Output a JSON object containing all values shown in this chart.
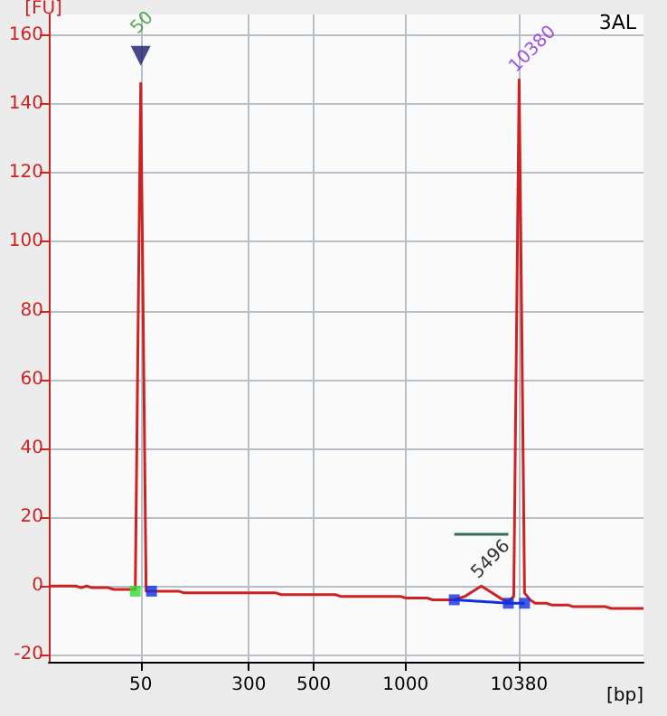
{
  "chart_data": {
    "type": "line",
    "title": "3AL",
    "xlabel": "[bp]",
    "ylabel": "[FU]",
    "categories": [
      null,
      null,
      null,
      null,
      null,
      null,
      null,
      null,
      null,
      null,
      null,
      null,
      null,
      null,
      null,
      null,
      null,
      "50",
      null,
      null,
      null,
      null,
      null,
      null,
      null,
      null,
      null,
      null,
      null,
      null,
      null,
      null,
      null,
      null,
      null,
      null,
      null,
      "300",
      null,
      null,
      null,
      null,
      null,
      null,
      null,
      null,
      null,
      null,
      null,
      "500",
      null,
      null,
      null,
      null,
      null,
      null,
      null,
      null,
      null,
      null,
      null,
      null,
      null,
      null,
      null,
      null,
      "1000",
      null,
      null,
      null,
      null,
      null,
      null,
      null,
      null,
      null,
      null,
      null,
      null,
      null,
      null,
      null,
      null,
      null,
      null,
      null,
      null,
      "10380",
      null,
      null,
      null,
      null,
      null,
      null,
      null,
      null,
      null,
      null,
      null,
      null,
      null,
      null,
      null,
      null,
      null,
      null,
      null,
      null,
      null,
      null,
      null
    ],
    "series": [
      {
        "color": "#cc2222",
        "marker": "none",
        "values": [
          0,
          0,
          0,
          0,
          0,
          0,
          -0.5,
          0,
          -0.5,
          -0.5,
          -0.5,
          -0.5,
          -1,
          -1,
          -1,
          -1,
          -1,
          146,
          -1.5,
          -1.5,
          -1.5,
          -1.5,
          -1.5,
          -1.5,
          -1.5,
          -2,
          -2,
          -2,
          -2,
          -2,
          -2,
          -2,
          -2,
          -2,
          -2,
          -2,
          -2,
          -2,
          -2,
          -2,
          -2,
          -2,
          -2,
          -2.5,
          -2.5,
          -2.5,
          -2.5,
          -2.5,
          -2.5,
          -2.5,
          -2.5,
          -2.5,
          -2.5,
          -2.5,
          -3,
          -3,
          -3,
          -3,
          -3,
          -3,
          -3,
          -3,
          -3,
          -3,
          -3,
          -3,
          -3.5,
          -3.5,
          -3.5,
          -3.5,
          -3.5,
          -4,
          -4,
          -4,
          -4,
          -4,
          -3.5,
          -3,
          -2,
          -1,
          0,
          -1,
          -2,
          -3,
          -4,
          -4.5,
          -3,
          147,
          -2,
          -4,
          -5,
          -5,
          -5,
          -5.5,
          -5.5,
          -5.5,
          -5.5,
          -6,
          -6,
          -6,
          -6,
          -6,
          -6,
          -6,
          -6.5,
          -6.5,
          -6.5,
          -6.5,
          -6.5,
          -6.5,
          -6.5
        ]
      },
      {
        "type": "line",
        "color": "#1030e0",
        "marker": "none",
        "values": [
          null,
          null,
          null,
          null,
          null,
          null,
          null,
          null,
          null,
          null,
          null,
          null,
          null,
          null,
          null,
          null,
          null,
          null,
          null,
          null,
          null,
          null,
          null,
          null,
          null,
          null,
          null,
          null,
          null,
          null,
          null,
          null,
          null,
          null,
          null,
          null,
          null,
          null,
          null,
          null,
          null,
          null,
          null,
          null,
          null,
          null,
          null,
          null,
          null,
          null,
          null,
          null,
          null,
          null,
          null,
          null,
          null,
          null,
          null,
          null,
          null,
          null,
          null,
          null,
          null,
          null,
          null,
          null,
          null,
          null,
          null,
          null,
          null,
          null,
          null,
          -4,
          -4.1,
          -4.2,
          -4.3,
          -4.4,
          -4.5,
          -4.6,
          -4.7,
          -4.8,
          -4.9,
          -5,
          -5,
          -5,
          -5,
          null,
          null,
          null,
          null,
          null,
          null,
          null,
          null,
          null,
          null,
          null,
          null,
          null,
          null,
          null,
          null,
          null,
          null,
          null,
          null,
          null,
          null
        ]
      },
      {
        "type": "line",
        "color": "#2e6e5a",
        "marker": "none",
        "values": [
          null,
          null,
          null,
          null,
          null,
          null,
          null,
          null,
          null,
          null,
          null,
          null,
          null,
          null,
          null,
          null,
          null,
          null,
          null,
          null,
          null,
          null,
          null,
          null,
          null,
          null,
          null,
          null,
          null,
          null,
          null,
          null,
          null,
          null,
          null,
          null,
          null,
          null,
          null,
          null,
          null,
          null,
          null,
          null,
          null,
          null,
          null,
          null,
          null,
          null,
          null,
          null,
          null,
          null,
          null,
          null,
          null,
          null,
          null,
          null,
          null,
          null,
          null,
          null,
          null,
          null,
          null,
          null,
          null,
          null,
          null,
          null,
          null,
          null,
          null,
          15,
          15,
          15,
          15,
          15,
          15,
          15,
          15,
          15,
          15,
          15,
          null,
          null,
          null,
          null,
          null,
          null,
          null,
          null,
          null,
          null,
          null,
          null,
          null,
          null,
          null,
          null,
          null,
          null,
          null,
          null,
          null,
          null,
          null,
          null,
          null
        ]
      },
      {
        "type": "scatter",
        "color": "#1030e0",
        "marker": "square",
        "values": [
          null,
          null,
          null,
          null,
          null,
          null,
          null,
          null,
          null,
          null,
          null,
          null,
          null,
          null,
          null,
          null,
          null,
          null,
          null,
          -1.5,
          null,
          null,
          null,
          null,
          null,
          null,
          null,
          null,
          null,
          null,
          null,
          null,
          null,
          null,
          null,
          null,
          null,
          null,
          null,
          null,
          null,
          null,
          null,
          null,
          null,
          null,
          null,
          null,
          null,
          null,
          null,
          null,
          null,
          null,
          null,
          null,
          null,
          null,
          null,
          null,
          null,
          null,
          null,
          null,
          null,
          null,
          null,
          null,
          null,
          null,
          null,
          null,
          null,
          null,
          null,
          -4,
          null,
          null,
          null,
          null,
          null,
          null,
          null,
          null,
          null,
          -5,
          null,
          null,
          -5,
          null,
          null,
          null,
          null,
          null,
          null,
          null,
          null,
          null,
          null,
          null,
          null,
          null,
          null,
          null,
          null,
          null,
          null,
          null,
          null,
          null,
          null
        ]
      },
      {
        "type": "scatter",
        "color": "#33dd33",
        "marker": "square",
        "values": [
          null,
          null,
          null,
          null,
          null,
          null,
          null,
          null,
          null,
          null,
          null,
          null,
          null,
          null,
          null,
          null,
          -1.5,
          null,
          null,
          null,
          null,
          null,
          null,
          null,
          null,
          null,
          null,
          null,
          null,
          null,
          null,
          null,
          null,
          null,
          null,
          null,
          null,
          null,
          null,
          null,
          null,
          null,
          null,
          null,
          null,
          null,
          null,
          null,
          null,
          null,
          null,
          null,
          null,
          null,
          null,
          null,
          null,
          null,
          null,
          null,
          null,
          null,
          null,
          null,
          null,
          null,
          null,
          null,
          null,
          null,
          null,
          null,
          null,
          null,
          null,
          null,
          null,
          null,
          null,
          null,
          null,
          null,
          null,
          null,
          null,
          null,
          null,
          null,
          null,
          null,
          null,
          null,
          null,
          null,
          null,
          null,
          null,
          null,
          null,
          null,
          null,
          null,
          null,
          null,
          null,
          null,
          null,
          null,
          null,
          null,
          null
        ]
      },
      {
        "type": "scatter",
        "color": "#1c1c6b",
        "marker": "triangle",
        "values": [
          null,
          null,
          null,
          null,
          null,
          null,
          null,
          null,
          null,
          null,
          null,
          null,
          null,
          null,
          null,
          null,
          null,
          154,
          null,
          null,
          null,
          null,
          null,
          null,
          null,
          null,
          null,
          null,
          null,
          null,
          null,
          null,
          null,
          null,
          null,
          null,
          null,
          null,
          null,
          null,
          null,
          null,
          null,
          null,
          null,
          null,
          null,
          null,
          null,
          null,
          null,
          null,
          null,
          null,
          null,
          null,
          null,
          null,
          null,
          null,
          null,
          null,
          null,
          null,
          null,
          null,
          null,
          null,
          null,
          null,
          null,
          null,
          null,
          null,
          null,
          null,
          null,
          null,
          null,
          null,
          null,
          null,
          null,
          null,
          null,
          null,
          null,
          null,
          null,
          null,
          null,
          null,
          null,
          null,
          null,
          null,
          null,
          null,
          null,
          null,
          null,
          null,
          null,
          null,
          null,
          null,
          null,
          null,
          null,
          null,
          null
        ]
      }
    ],
    "annotations": [
      {
        "text": "50",
        "x": "50",
        "y": 154
      },
      {
        "text": "10380",
        "x": "10380",
        "y": 147
      },
      {
        "text": "5496",
        "y": 0
      }
    ],
    "ylim": [
      -22,
      166
    ],
    "yticks": [
      -20,
      0,
      20,
      40,
      60,
      80,
      100,
      120,
      140,
      160
    ],
    "grid": true
  }
}
